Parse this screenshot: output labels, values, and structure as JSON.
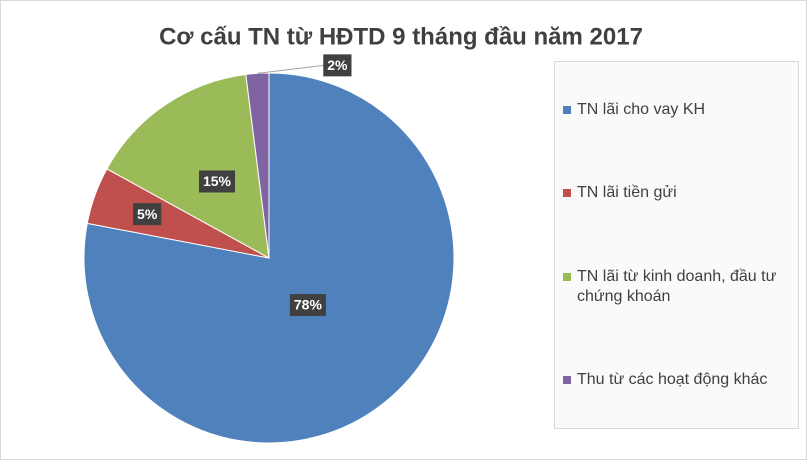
{
  "chart_data": {
    "type": "pie",
    "title": "Cơ cấu TN từ HĐTD 9 tháng đầu năm 2017",
    "categories": [
      "TN lãi cho vay KH",
      "TN lãi tiền gửi",
      "TN lãi từ kinh doanh, đầu tư chứng khoán",
      "Thu từ các hoạt động khác"
    ],
    "values": [
      78,
      5,
      15,
      2
    ],
    "value_labels": [
      "78%",
      "5%",
      "15%",
      "2%"
    ],
    "colors": [
      "#4f81bd",
      "#c0504d",
      "#9bbb59",
      "#8064a2"
    ],
    "legend": "right"
  }
}
